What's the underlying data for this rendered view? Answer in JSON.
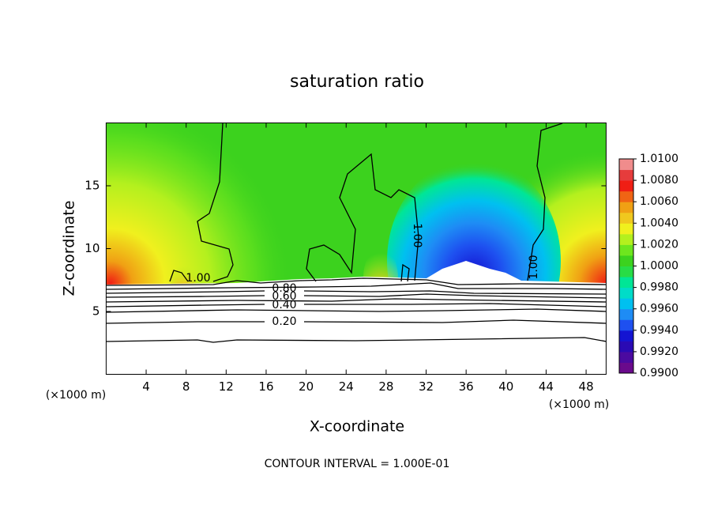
{
  "chart_data": {
    "type": "contour",
    "title": "saturation ratio",
    "x_label": "X-coordinate",
    "y_label": "Z-coordinate",
    "x_unit": "(×1000 m)",
    "footnote": "CONTOUR INTERVAL = 1.000E-01",
    "xlim": [
      0,
      50
    ],
    "xticks": [
      4,
      8,
      12,
      16,
      20,
      24,
      28,
      32,
      36,
      40,
      44,
      48
    ],
    "ylim": [
      0,
      20
    ],
    "yticks": [
      5,
      10,
      15
    ],
    "contour_labels": [
      "1.00",
      "0.80",
      "0.60",
      "0.40",
      "0.20",
      "1.00",
      "1.00"
    ],
    "colorbar": {
      "lim": [
        0.99,
        1.01
      ],
      "ticks": [
        {
          "value": 1.01,
          "label": "1.0100"
        },
        {
          "value": 1.008,
          "label": "1.0080"
        },
        {
          "value": 1.006,
          "label": "1.0060"
        },
        {
          "value": 1.004,
          "label": "1.0040"
        },
        {
          "value": 1.002,
          "label": "1.0020"
        },
        {
          "value": 1.0,
          "label": "1.0000"
        },
        {
          "value": 0.998,
          "label": "0.9980"
        },
        {
          "value": 0.996,
          "label": "0.9960"
        },
        {
          "value": 0.994,
          "label": "0.9940"
        },
        {
          "value": 0.992,
          "label": "0.9920"
        },
        {
          "value": 0.99,
          "label": "0.9900"
        }
      ],
      "colors": [
        "#6a0a8c",
        "#4b0aa0",
        "#2a0ab4",
        "#1414d2",
        "#1e50f0",
        "#1e8cf5",
        "#00c0f0",
        "#00dcc8",
        "#00e696",
        "#28dc46",
        "#3cd21e",
        "#6ee61e",
        "#b4f01e",
        "#f0f01e",
        "#f0c81e",
        "#f0a014",
        "#f06414",
        "#f01e14",
        "#e63c3c",
        "#f08c8c"
      ]
    }
  }
}
